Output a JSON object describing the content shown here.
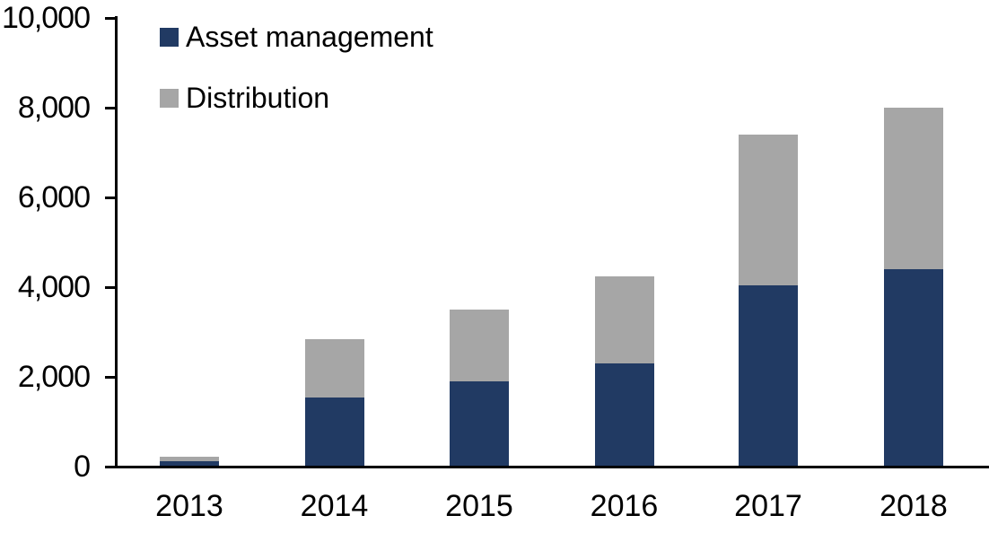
{
  "chart_data": {
    "type": "bar",
    "stacked": true,
    "title": "",
    "xlabel": "",
    "ylabel": "",
    "categories": [
      "2013",
      "2014",
      "2015",
      "2016",
      "2017",
      "2018"
    ],
    "series": [
      {
        "name": "Asset management",
        "color": "#213a63",
        "values": [
          120,
          1550,
          1900,
          2300,
          4050,
          4400
        ]
      },
      {
        "name": "Distribution",
        "color": "#a6a6a6",
        "values": [
          110,
          1300,
          1600,
          1950,
          3350,
          3600
        ]
      }
    ],
    "totals": [
      230,
      2850,
      3500,
      4250,
      7400,
      8000
    ],
    "ylim": [
      0,
      10000
    ],
    "ytick_interval": 2000,
    "ytick_labels": [
      "0",
      "2,000",
      "4,000",
      "6,000",
      "8,000",
      "10,000"
    ],
    "grid": false,
    "legend_position": "top-left-inside",
    "axis_color": "#000000",
    "text_color": "#000000",
    "background_color": "#ffffff"
  }
}
